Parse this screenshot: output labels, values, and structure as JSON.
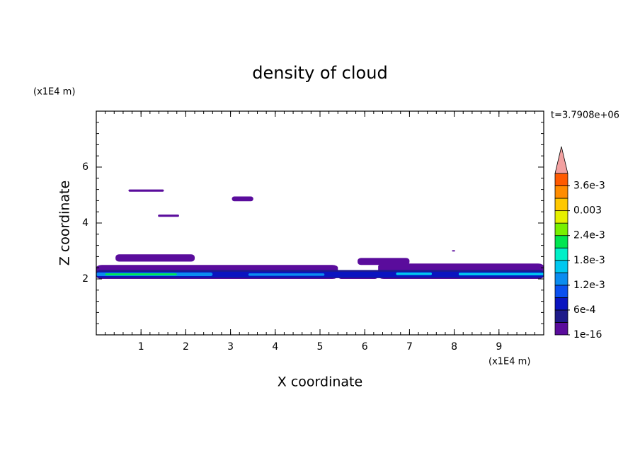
{
  "chart_data": {
    "type": "contour",
    "title": "density of cloud",
    "x_label": "X coordinate",
    "y_label": "Z coordinate",
    "x_unit": "(x1E4 m)",
    "y_unit": "(x1E4 m)",
    "time_label": "t=3.7908e+06",
    "xlim": [
      0,
      10
    ],
    "ylim": [
      0,
      8
    ],
    "xticks": [
      1,
      2,
      3,
      4,
      5,
      6,
      7,
      8,
      9
    ],
    "yticks": [
      2,
      4,
      6
    ],
    "colorbar": {
      "levels": [
        1e-16,
        0.0003,
        0.0006,
        0.0009,
        0.0012,
        0.0015,
        0.0018,
        0.0021,
        0.0024,
        0.0027,
        0.003,
        0.0033,
        0.0036,
        0.0039
      ],
      "colors": [
        "#5a0c9c",
        "#1e1a8a",
        "#0a14c0",
        "#0a50f0",
        "#0a8cf0",
        "#00c8f0",
        "#00f0c8",
        "#00e650",
        "#78f000",
        "#e6f000",
        "#ffc800",
        "#ff8c00",
        "#ff5a00",
        "#ff1e1e"
      ],
      "over_color": "#f2a0a0",
      "ticks": [
        {
          "value": 1e-16,
          "label": "1e-16"
        },
        {
          "value": 0.0006,
          "label": "6e-4"
        },
        {
          "value": 0.0012,
          "label": "1.2e-3"
        },
        {
          "value": 0.0018,
          "label": "1.8e-3"
        },
        {
          "value": 0.0024,
          "label": "2.4e-3"
        },
        {
          "value": 0.003,
          "label": "0.003"
        },
        {
          "value": 0.0036,
          "label": "3.6e-3"
        }
      ]
    },
    "regions": [
      {
        "x": [
          0,
          5.4
        ],
        "z": [
          2.0,
          2.5
        ],
        "value": 1e-16
      },
      {
        "x": [
          5.4,
          6.3
        ],
        "z": [
          2.0,
          2.25
        ],
        "value": 1e-16
      },
      {
        "x": [
          6.3,
          10
        ],
        "z": [
          2.0,
          2.55
        ],
        "value": 1e-16
      },
      {
        "x": [
          0.72,
          1.51
        ],
        "z": [
          5.12,
          5.2
        ],
        "value": 1e-16
      },
      {
        "x": [
          1.38,
          1.85
        ],
        "z": [
          4.22,
          4.3
        ],
        "value": 1e-16
      },
      {
        "x": [
          3.03,
          3.51
        ],
        "z": [
          4.78,
          4.95
        ],
        "value": 1e-16
      },
      {
        "x": [
          0.43,
          2.2
        ],
        "z": [
          2.62,
          2.88
        ],
        "value": 1e-16
      },
      {
        "x": [
          5.84,
          7.0
        ],
        "z": [
          2.5,
          2.75
        ],
        "value": 1e-16
      },
      {
        "x": [
          7.95,
          8.02
        ],
        "z": [
          2.98,
          3.03
        ],
        "value": 1e-16
      },
      {
        "x": [
          0,
          10
        ],
        "z": [
          2.03,
          2.32
        ],
        "value": 0.0004
      },
      {
        "x": [
          0,
          10
        ],
        "z": [
          2.06,
          2.26
        ],
        "value": 0.0007
      },
      {
        "x": [
          0,
          2.6
        ],
        "z": [
          2.1,
          2.23
        ],
        "value": 0.0013
      },
      {
        "x": [
          0.2,
          1.8
        ],
        "z": [
          2.13,
          2.2
        ],
        "value": 0.0021
      },
      {
        "x": [
          3.4,
          5.1
        ],
        "z": [
          2.11,
          2.2
        ],
        "value": 0.0014
      },
      {
        "x": [
          6.7,
          7.5
        ],
        "z": [
          2.14,
          2.23
        ],
        "value": 0.0016
      },
      {
        "x": [
          8.1,
          10
        ],
        "z": [
          2.13,
          2.22
        ],
        "value": 0.0015
      }
    ]
  }
}
